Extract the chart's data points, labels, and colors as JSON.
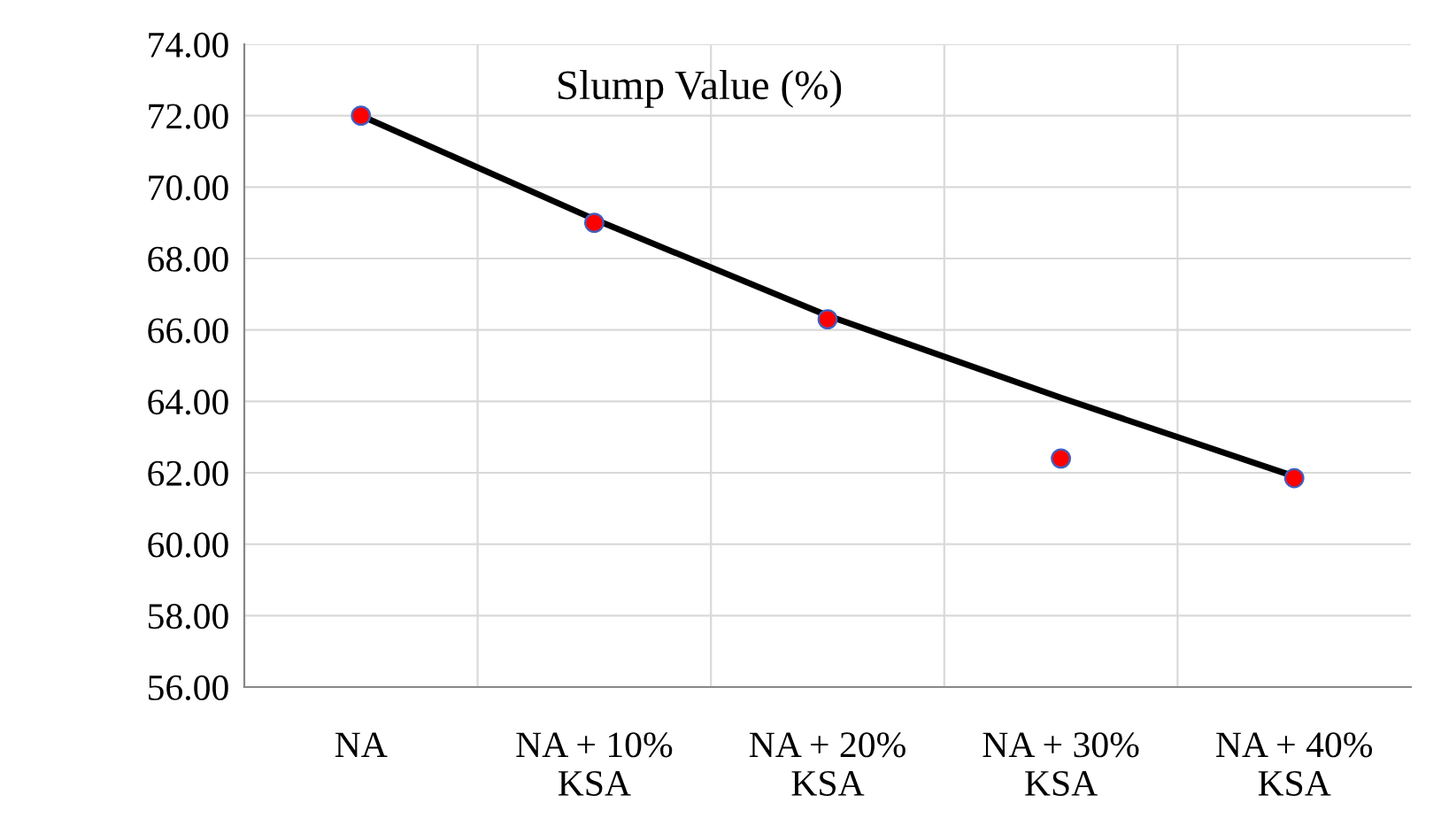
{
  "chart_data": {
    "type": "line",
    "title": "Slump Value (%)",
    "categories": [
      "NA",
      "NA + 10%\nKSA",
      "NA + 20%\nKSA",
      "NA + 30%\nKSA",
      "NA + 40%\nKSA"
    ],
    "series": [
      {
        "color": "#000000",
        "marker": "none",
        "line_style": "solid",
        "values": [
          72.0,
          69.1,
          66.4,
          64.1,
          61.9
        ]
      },
      {
        "type": "scatter",
        "color": "#ff0000",
        "marker": "circle",
        "values": [
          72.0,
          69.0,
          66.3,
          62.4,
          61.85
        ]
      }
    ],
    "ylim": [
      56,
      74
    ],
    "yticks": [
      {
        "value": 56,
        "label": "56.00"
      },
      {
        "value": 58,
        "label": "58.00"
      },
      {
        "value": 60,
        "label": "60.00"
      },
      {
        "value": 62,
        "label": "62.00"
      },
      {
        "value": 64,
        "label": "64.00"
      },
      {
        "value": 66,
        "label": "66.00"
      },
      {
        "value": 68,
        "label": "68.00"
      },
      {
        "value": 70,
        "label": "70.00"
      },
      {
        "value": 72,
        "label": "72.00"
      },
      {
        "value": 74,
        "label": "74.00"
      }
    ],
    "grid": true
  }
}
